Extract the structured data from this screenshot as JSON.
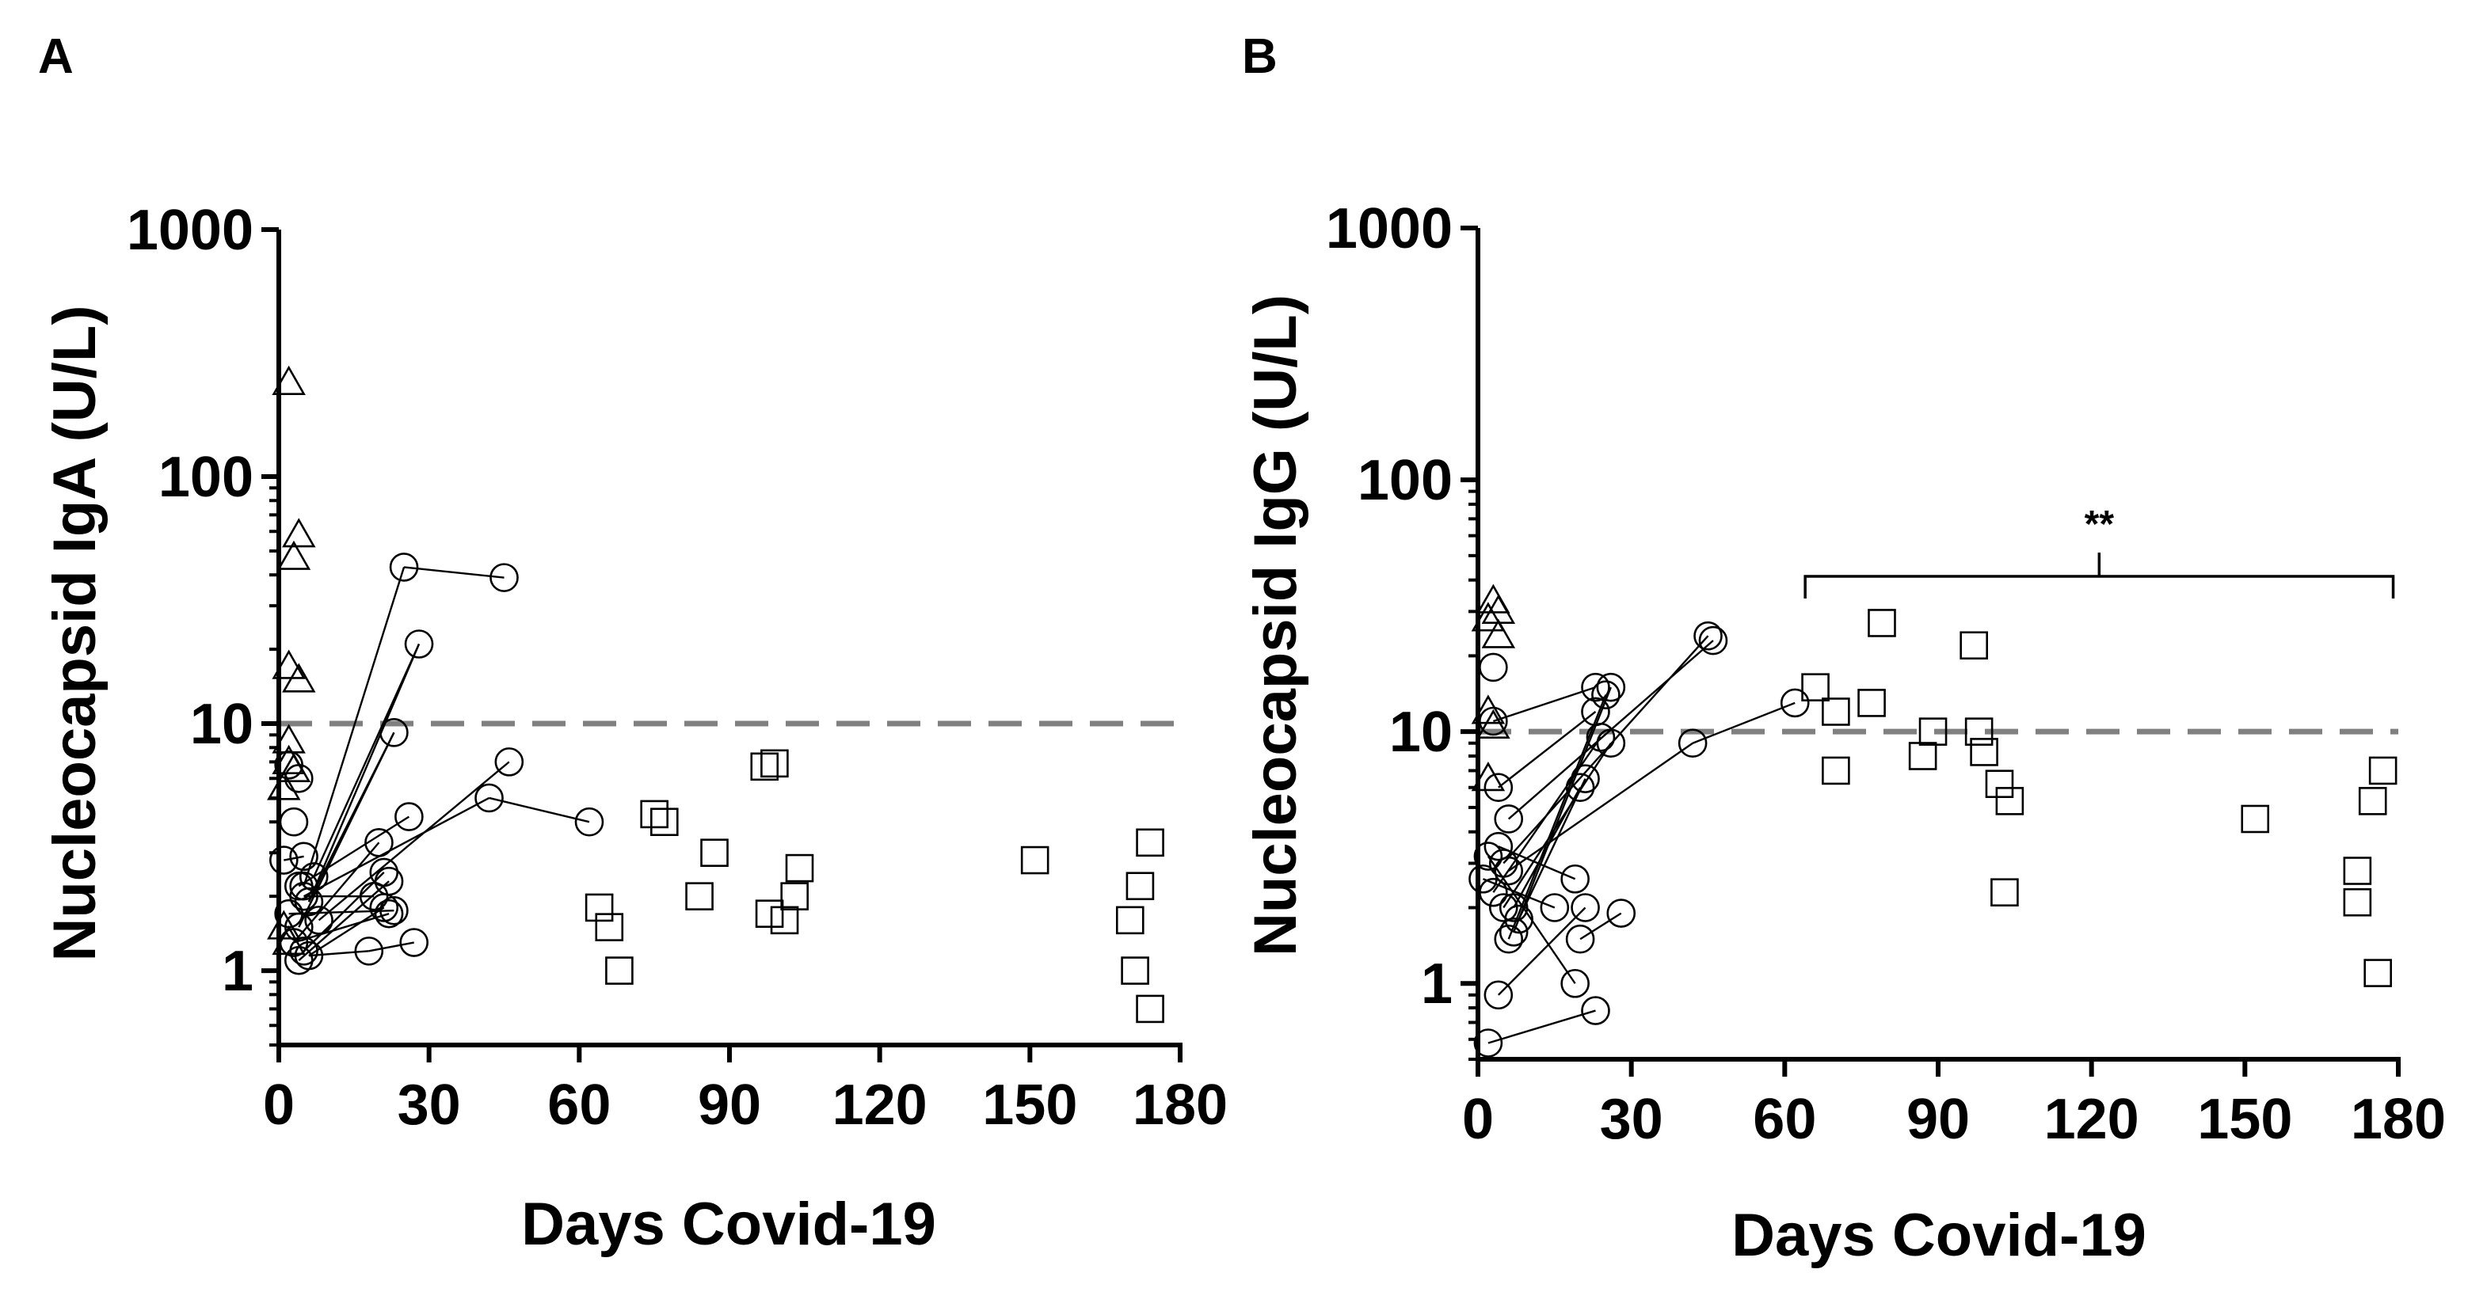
{
  "chart_data": [
    {
      "type": "scatter",
      "panel_label": "A",
      "xlabel": "Days Covid-19",
      "ylabel": "Nucleocapsid IgA (U/L)",
      "yscale": "log",
      "xlim": [
        0,
        180
      ],
      "ylim": [
        0.5,
        1000
      ],
      "xticks": [
        0,
        30,
        60,
        90,
        120,
        150,
        180
      ],
      "xtick_labels": [
        "0",
        "30",
        "60",
        "90",
        "120",
        "150",
        "180"
      ],
      "yticks": [
        1,
        10,
        100,
        1000
      ],
      "ytick_labels": [
        "1",
        "10",
        "100",
        "1000"
      ],
      "threshold": 10,
      "series": [
        {
          "name": "triangles",
          "marker": "triangle",
          "points": [
            [
              2,
              240
            ],
            [
              4,
              58
            ],
            [
              3,
              47
            ],
            [
              2,
              17
            ],
            [
              4,
              15
            ],
            [
              2,
              8.5
            ],
            [
              2,
              7
            ],
            [
              1,
              5.5
            ],
            [
              3,
              6.5
            ],
            [
              1,
              1.5
            ],
            [
              2,
              1.3
            ]
          ]
        },
        {
          "name": "circles",
          "marker": "circle",
          "points": [
            [
              25,
              43
            ],
            [
              45,
              39
            ],
            [
              28,
              21
            ],
            [
              23,
              9.2
            ],
            [
              46,
              7
            ],
            [
              42,
              5
            ],
            [
              26,
              4.2
            ],
            [
              62,
              4
            ],
            [
              3,
              4
            ],
            [
              1,
              2.8
            ],
            [
              5,
              2.9
            ],
            [
              4,
              6
            ],
            [
              2,
              6.8
            ],
            [
              5,
              2.2
            ],
            [
              6,
              1.9
            ],
            [
              7,
              2.4
            ],
            [
              4,
              2.2
            ],
            [
              5,
              2.0
            ],
            [
              20,
              3.3
            ],
            [
              21,
              2.5
            ],
            [
              22,
              2.3
            ],
            [
              21,
              1.8
            ],
            [
              23,
              1.75
            ],
            [
              22,
              1.7
            ],
            [
              8,
              1.6
            ],
            [
              2,
              1.7
            ],
            [
              4,
              1.5
            ],
            [
              3,
              1.3
            ],
            [
              5,
              1.2
            ],
            [
              4,
              1.1
            ],
            [
              6,
              1.15
            ],
            [
              18,
              1.2
            ],
            [
              27,
              1.3
            ],
            [
              19,
              2.0
            ]
          ]
        },
        {
          "name": "squares",
          "marker": "square",
          "points": [
            [
              64,
              1.8
            ],
            [
              66,
              1.5
            ],
            [
              68,
              1.0
            ],
            [
              75,
              4.3
            ],
            [
              77,
              4.0
            ],
            [
              84,
              2.0
            ],
            [
              87,
              3.0
            ],
            [
              97,
              6.7
            ],
            [
              99,
              6.9
            ],
            [
              98,
              1.7
            ],
            [
              101,
              1.6
            ],
            [
              103,
              2.0
            ],
            [
              104,
              2.6
            ],
            [
              151,
              2.8
            ],
            [
              170,
              1.6
            ],
            [
              171,
              1.0
            ],
            [
              172,
              2.2
            ],
            [
              174,
              0.7
            ],
            [
              174,
              3.3
            ]
          ]
        }
      ],
      "segments": [
        [
          [
            25,
            43
          ],
          [
            45,
            39
          ]
        ],
        [
          [
            5,
            2.2
          ],
          [
            25,
            43
          ]
        ],
        [
          [
            6,
            1.9
          ],
          [
            28,
            21
          ]
        ],
        [
          [
            7,
            2.4
          ],
          [
            28,
            21
          ]
        ],
        [
          [
            6,
            1.9
          ],
          [
            23,
            9.2
          ]
        ],
        [
          [
            4,
            1.5
          ],
          [
            23,
            9.2
          ]
        ],
        [
          [
            8,
            1.6
          ],
          [
            46,
            7
          ]
        ],
        [
          [
            5,
            2.0
          ],
          [
            42,
            5
          ]
        ],
        [
          [
            42,
            5
          ],
          [
            62,
            4
          ]
        ],
        [
          [
            4,
            2.2
          ],
          [
            26,
            4.2
          ]
        ],
        [
          [
            3,
            1.3
          ],
          [
            20,
            3.3
          ]
        ],
        [
          [
            5,
            1.2
          ],
          [
            21,
            2.5
          ]
        ],
        [
          [
            4,
            1.1
          ],
          [
            22,
            2.3
          ]
        ],
        [
          [
            6,
            1.15
          ],
          [
            21,
            1.8
          ]
        ],
        [
          [
            2,
            1.7
          ],
          [
            23,
            1.75
          ]
        ],
        [
          [
            3,
            1.3
          ],
          [
            22,
            1.7
          ]
        ],
        [
          [
            5,
            2.0
          ],
          [
            19,
            2.0
          ]
        ],
        [
          [
            6,
            1.15
          ],
          [
            18,
            1.2
          ]
        ],
        [
          [
            18,
            1.2
          ],
          [
            27,
            1.3
          ]
        ],
        [
          [
            1,
            2.8
          ],
          [
            5,
            2.9
          ]
        ]
      ]
    },
    {
      "type": "scatter",
      "panel_label": "B",
      "xlabel": "Days Covid-19",
      "ylabel": "Nucleocapsid IgG (U/L)",
      "yscale": "log",
      "xlim": [
        0,
        180
      ],
      "ylim": [
        0.5,
        1000
      ],
      "xticks": [
        0,
        30,
        60,
        90,
        120,
        150,
        180
      ],
      "xtick_labels": [
        "0",
        "30",
        "60",
        "90",
        "120",
        "150",
        "180"
      ],
      "yticks": [
        1,
        10,
        100,
        1000
      ],
      "ytick_labels": [
        "1",
        "10",
        "100",
        "1000"
      ],
      "threshold": 10,
      "annotation": {
        "text": "**",
        "x_from": 64,
        "x_to": 179
      },
      "series": [
        {
          "name": "triangles",
          "marker": "triangle",
          "points": [
            [
              2,
              28
            ],
            [
              3,
              33
            ],
            [
              4,
              30
            ],
            [
              4,
              24
            ],
            [
              2,
              12
            ],
            [
              3,
              10.5
            ],
            [
              2,
              6.5
            ]
          ]
        },
        {
          "name": "circles",
          "marker": "circle",
          "points": [
            [
              46,
              23
            ],
            [
              45,
              24
            ],
            [
              42,
              9
            ],
            [
              62,
              13
            ],
            [
              23,
              15
            ],
            [
              25,
              14
            ],
            [
              26,
              15
            ],
            [
              23,
              12
            ],
            [
              24,
              9.5
            ],
            [
              26,
              9
            ],
            [
              20,
              6
            ],
            [
              21,
              6.5
            ],
            [
              3,
              18
            ],
            [
              3,
              11
            ],
            [
              4,
              6
            ],
            [
              6,
              4.5
            ],
            [
              4,
              3.5
            ],
            [
              2,
              3.2
            ],
            [
              5,
              3.0
            ],
            [
              6,
              2.8
            ],
            [
              1,
              2.6
            ],
            [
              3,
              2.3
            ],
            [
              5,
              2.0
            ],
            [
              7,
              2.0
            ],
            [
              8,
              1.8
            ],
            [
              6,
              1.5
            ],
            [
              7,
              1.6
            ],
            [
              15,
              2.0
            ],
            [
              19,
              2.6
            ],
            [
              21,
              2.0
            ],
            [
              20,
              1.5
            ],
            [
              19,
              1.0
            ],
            [
              4,
              0.9
            ],
            [
              23,
              0.78
            ],
            [
              2,
              0.58
            ],
            [
              28,
              1.9
            ]
          ]
        },
        {
          "name": "squares",
          "marker": "square",
          "points": [
            [
              66,
              15
            ],
            [
              70,
              12
            ],
            [
              70,
              7
            ],
            [
              77,
              13
            ],
            [
              79,
              27
            ],
            [
              87,
              8
            ],
            [
              89,
              10
            ],
            [
              97,
              22
            ],
            [
              98,
              10
            ],
            [
              99,
              8.3
            ],
            [
              102,
              6.2
            ],
            [
              104,
              5.3
            ],
            [
              103,
              2.3
            ],
            [
              152,
              4.5
            ],
            [
              172,
              2.8
            ],
            [
              172,
              2.1
            ],
            [
              175,
              5.3
            ],
            [
              177,
              7
            ],
            [
              176,
              1.1
            ]
          ]
        }
      ],
      "segments": [
        [
          [
            3,
            11
          ],
          [
            23,
            15
          ]
        ],
        [
          [
            4,
            6
          ],
          [
            23,
            12
          ]
        ],
        [
          [
            6,
            4.5
          ],
          [
            46,
            23
          ]
        ],
        [
          [
            5,
            3.0
          ],
          [
            45,
            24
          ]
        ],
        [
          [
            6,
            2.8
          ],
          [
            42,
            9
          ]
        ],
        [
          [
            42,
            9
          ],
          [
            62,
            13
          ]
        ],
        [
          [
            3,
            2.3
          ],
          [
            24,
            9.5
          ]
        ],
        [
          [
            5,
            2.0
          ],
          [
            26,
            9
          ]
        ],
        [
          [
            7,
            2.0
          ],
          [
            20,
            6
          ]
        ],
        [
          [
            8,
            1.8
          ],
          [
            21,
            6.5
          ]
        ],
        [
          [
            6,
            1.5
          ],
          [
            25,
            14
          ]
        ],
        [
          [
            7,
            1.6
          ],
          [
            26,
            15
          ]
        ],
        [
          [
            1,
            2.6
          ],
          [
            15,
            2.0
          ]
        ],
        [
          [
            4,
            3.5
          ],
          [
            19,
            2.6
          ]
        ],
        [
          [
            2,
            3.2
          ],
          [
            19,
            1.0
          ]
        ],
        [
          [
            4,
            0.9
          ],
          [
            21,
            2.0
          ]
        ],
        [
          [
            2,
            0.58
          ],
          [
            23,
            0.78
          ]
        ],
        [
          [
            20,
            1.5
          ],
          [
            28,
            1.9
          ]
        ]
      ]
    }
  ]
}
